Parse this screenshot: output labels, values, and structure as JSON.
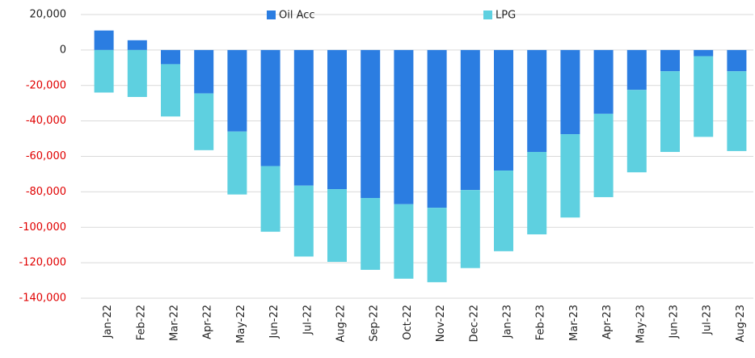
{
  "chart_data": {
    "type": "stacked_bar",
    "categories": [
      "Jan-22",
      "Feb-22",
      "Mar-22",
      "Apr-22",
      "May-22",
      "Jun-22",
      "Jul-22",
      "Aug-22",
      "Sep-22",
      "Oct-22",
      "Nov-22",
      "Dec-22",
      "Jan-23",
      "Feb-23",
      "Mar-23",
      "Apr-23",
      "May-23",
      "Jun-23",
      "Jul-23",
      "Aug-23"
    ],
    "series": [
      {
        "name": "Oil Acc",
        "color": "#2b7de1",
        "values": [
          11000,
          5500,
          -8000,
          -24500,
          -46000,
          -65500,
          -76500,
          -78500,
          -83500,
          -87000,
          -89000,
          -79000,
          -68000,
          -57500,
          -47500,
          -36000,
          -22500,
          -12000,
          -3500,
          -12000
        ]
      },
      {
        "name": "LPG",
        "color": "#5ed0e0",
        "values": [
          -24000,
          -26500,
          -29500,
          -32000,
          -35500,
          -37000,
          -40000,
          -41000,
          -40500,
          -42000,
          -42000,
          -44000,
          -45500,
          -46500,
          -47000,
          -47000,
          -46500,
          -45500,
          -45500,
          -45000
        ]
      }
    ],
    "ylim": [
      -140000,
      20000
    ],
    "yticks": [
      {
        "value": 20000,
        "label": "20,000"
      },
      0,
      {
        "value": -20000,
        "label": "-20,000"
      },
      {
        "value": -40000,
        "label": "-40,000"
      },
      {
        "value": -60000,
        "label": "-60,000"
      },
      {
        "value": -80000,
        "label": "-80,000"
      },
      {
        "value": -100000,
        "label": "-100,000"
      },
      {
        "value": -120000,
        "label": "-120,000"
      },
      {
        "value": -140000,
        "label": "-140,000"
      }
    ],
    "grid": true,
    "legend": "top",
    "negative_tick_color": "#e00000"
  }
}
